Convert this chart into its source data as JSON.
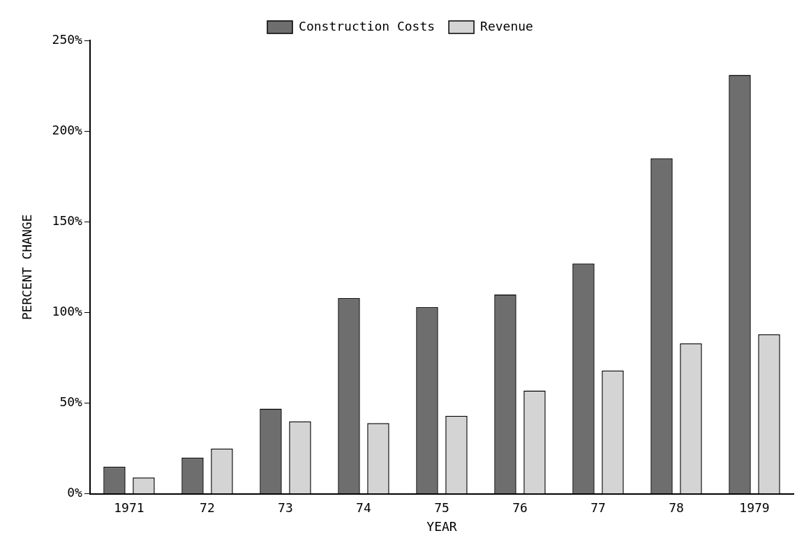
{
  "chart_data": {
    "type": "bar",
    "xlabel": "YEAR",
    "ylabel": "PERCENT CHANGE",
    "categories": [
      "1971",
      "72",
      "73",
      "74",
      "75",
      "76",
      "77",
      "78",
      "1979"
    ],
    "series": [
      {
        "name": "Construction Costs",
        "color": "#6e6e6e",
        "values": [
          15,
          20,
          47,
          108,
          103,
          110,
          127,
          185,
          231
        ]
      },
      {
        "name": "Revenue",
        "color": "#d4d4d4",
        "values": [
          9,
          25,
          40,
          39,
          43,
          57,
          68,
          83,
          88
        ]
      }
    ],
    "ylim": [
      0,
      250
    ],
    "yticks": [
      {
        "value": 0,
        "label": "0%"
      },
      {
        "value": 50,
        "label": "50%"
      },
      {
        "value": 100,
        "label": "100%"
      },
      {
        "value": 150,
        "label": "150%"
      },
      {
        "value": 200,
        "label": "200%"
      },
      {
        "value": 250,
        "label": "250%"
      }
    ],
    "grid": false,
    "legend": "top"
  }
}
